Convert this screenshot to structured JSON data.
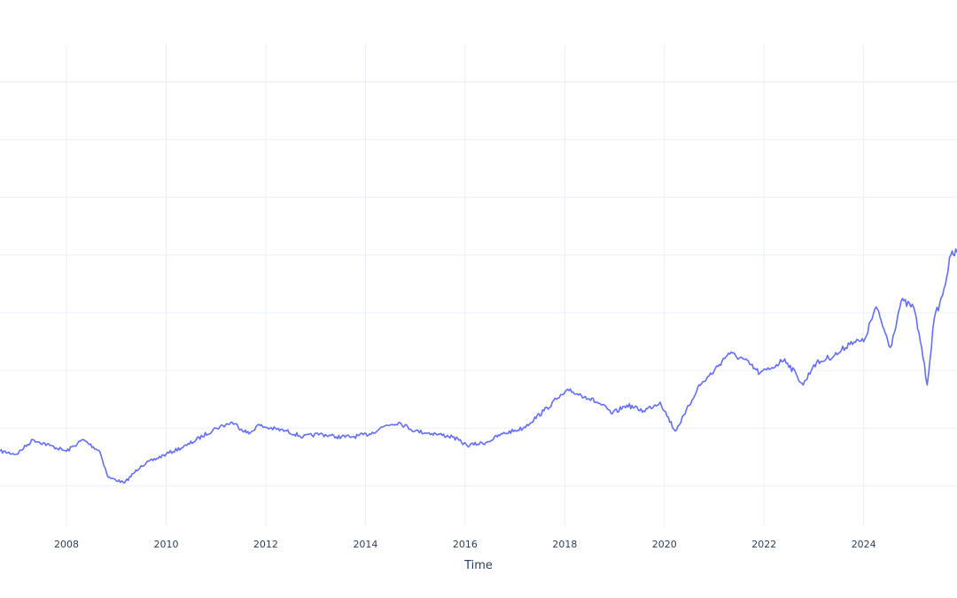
{
  "chart_data": {
    "type": "line",
    "title": "",
    "xlabel": "Time",
    "ylabel": "",
    "grid": true,
    "legend": "none",
    "x_ticks": [
      "2008",
      "2010",
      "2012",
      "2014",
      "2016",
      "2018",
      "2020",
      "2022",
      "2024"
    ],
    "x_range": [
      "2006-09-01",
      "2025-11-15"
    ],
    "y_range": [
      0.3,
      8.5
    ],
    "y_gridlines": [
      1,
      2,
      3,
      4,
      5,
      6,
      7,
      8
    ],
    "colors": {
      "series": "#636efa",
      "grid": "#ebf0f8",
      "text": "#2a3f5f"
    },
    "series": [
      {
        "x": [
          "2006-09-01",
          "2007-01-01",
          "2007-05-01",
          "2007-09-01",
          "2008-01-01",
          "2008-05-01",
          "2008-09-01",
          "2008-11-01",
          "2009-03-01",
          "2009-07-01",
          "2010-01-01",
          "2010-06-01",
          "2011-01-01",
          "2011-05-01",
          "2011-09-01",
          "2011-11-01",
          "2012-02-01",
          "2012-06-01",
          "2012-10-01",
          "2013-02-01",
          "2013-06-01",
          "2013-10-01",
          "2014-02-01",
          "2014-06-01",
          "2014-09-01",
          "2015-01-01",
          "2015-06-01",
          "2015-10-01",
          "2016-01-15",
          "2016-06-01",
          "2016-10-01",
          "2017-03-01",
          "2017-08-01",
          "2017-11-01",
          "2018-02-01",
          "2018-06-01",
          "2018-10-01",
          "2018-12-15",
          "2019-04-01",
          "2019-08-01",
          "2019-12-01",
          "2020-03-20",
          "2020-06-01",
          "2020-09-01",
          "2021-01-01",
          "2021-04-15",
          "2021-08-01",
          "2021-12-01",
          "2022-03-01",
          "2022-06-01",
          "2022-09-01",
          "2022-10-15",
          "2023-01-01",
          "2023-04-01",
          "2023-07-01",
          "2023-10-01",
          "2024-01-01",
          "2024-04-01",
          "2024-07-15",
          "2024-10-01",
          "2025-01-01",
          "2025-03-01",
          "2025-04-10",
          "2025-06-01",
          "2025-08-01",
          "2025-10-01",
          "2025-11-15"
        ],
        "y": [
          1.6,
          1.55,
          1.8,
          1.7,
          1.6,
          1.8,
          1.6,
          1.15,
          1.05,
          1.35,
          1.55,
          1.7,
          2.0,
          2.1,
          1.9,
          2.05,
          2.0,
          1.95,
          1.85,
          1.9,
          1.85,
          1.85,
          1.9,
          2.05,
          2.1,
          1.95,
          1.9,
          1.85,
          1.7,
          1.75,
          1.9,
          2.0,
          2.3,
          2.5,
          2.65,
          2.55,
          2.4,
          2.25,
          2.4,
          2.3,
          2.45,
          1.95,
          2.25,
          2.7,
          3.0,
          3.3,
          3.2,
          2.95,
          3.05,
          3.2,
          2.9,
          2.75,
          3.1,
          3.2,
          3.3,
          3.5,
          3.5,
          4.1,
          3.4,
          4.2,
          4.1,
          3.4,
          2.75,
          3.9,
          4.3,
          5.0,
          5.05
        ]
      }
    ]
  }
}
